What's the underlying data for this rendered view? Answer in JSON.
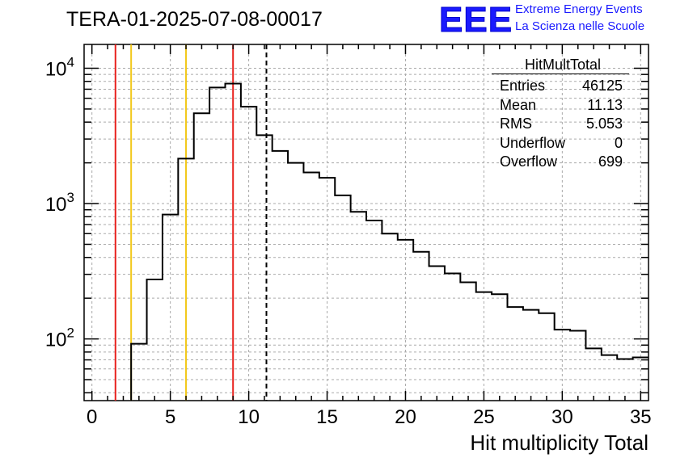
{
  "header": {
    "title": "TERA-01-2025-07-08-00017",
    "logo_text": "EEE",
    "logo_line1": "Extreme Energy Events",
    "logo_line2": "La Scienza nelle Scuole",
    "accent_color": "#1a1aff"
  },
  "stats": {
    "title": "HitMultTotal",
    "rows": [
      {
        "label": "Entries",
        "value": "46125"
      },
      {
        "label": "Mean",
        "value": "11.13"
      },
      {
        "label": "RMS",
        "value": "5.053"
      },
      {
        "label": "Underflow",
        "value": "0"
      },
      {
        "label": "Overflow",
        "value": "699"
      }
    ]
  },
  "chart_data": {
    "type": "histogram",
    "title": "TERA-01-2025-07-08-00017",
    "xlabel": "Hit multiplicity Total",
    "ylabel": "",
    "xlim": [
      -0.5,
      35.5
    ],
    "ylim": [
      35,
      15000
    ],
    "y_scale": "log",
    "grid": true,
    "bin_width": 1,
    "bin_low_edges": [
      -0.5,
      0.5,
      1.5,
      2.5,
      3.5,
      4.5,
      5.5,
      6.5,
      7.5,
      8.5,
      9.5,
      10.5,
      11.5,
      12.5,
      13.5,
      14.5,
      15.5,
      16.5,
      17.5,
      18.5,
      19.5,
      20.5,
      21.5,
      22.5,
      23.5,
      24.5,
      25.5,
      26.5,
      27.5,
      28.5,
      29.5,
      30.5,
      31.5,
      32.5,
      33.5,
      34.5
    ],
    "values": [
      0,
      0,
      0,
      92,
      275,
      830,
      2150,
      4650,
      7200,
      7700,
      5200,
      3200,
      2450,
      2000,
      1700,
      1550,
      1150,
      870,
      750,
      600,
      540,
      440,
      345,
      305,
      262,
      222,
      214,
      172,
      164,
      155,
      117,
      115,
      85,
      76,
      71,
      73
    ],
    "x_ticks": [
      "0",
      "5",
      "10",
      "15",
      "20",
      "25",
      "30",
      "35"
    ],
    "x_tick_values": [
      0,
      5,
      10,
      15,
      20,
      25,
      30,
      35
    ],
    "y_ticks": [
      {
        "base": "10",
        "exp": "2",
        "value": 100
      },
      {
        "base": "10",
        "exp": "3",
        "value": 1000
      },
      {
        "base": "10",
        "exp": "4",
        "value": 10000
      }
    ],
    "vertical_lines": [
      {
        "x": 1.5,
        "color": "#e8211d",
        "style": "solid"
      },
      {
        "x": 2.5,
        "color": "#f2c81a",
        "style": "solid"
      },
      {
        "x": 6.0,
        "color": "#f2c81a",
        "style": "solid"
      },
      {
        "x": 9.0,
        "color": "#e8211d",
        "style": "solid"
      },
      {
        "x": 11.13,
        "color": "#000000",
        "style": "dashed"
      }
    ]
  }
}
